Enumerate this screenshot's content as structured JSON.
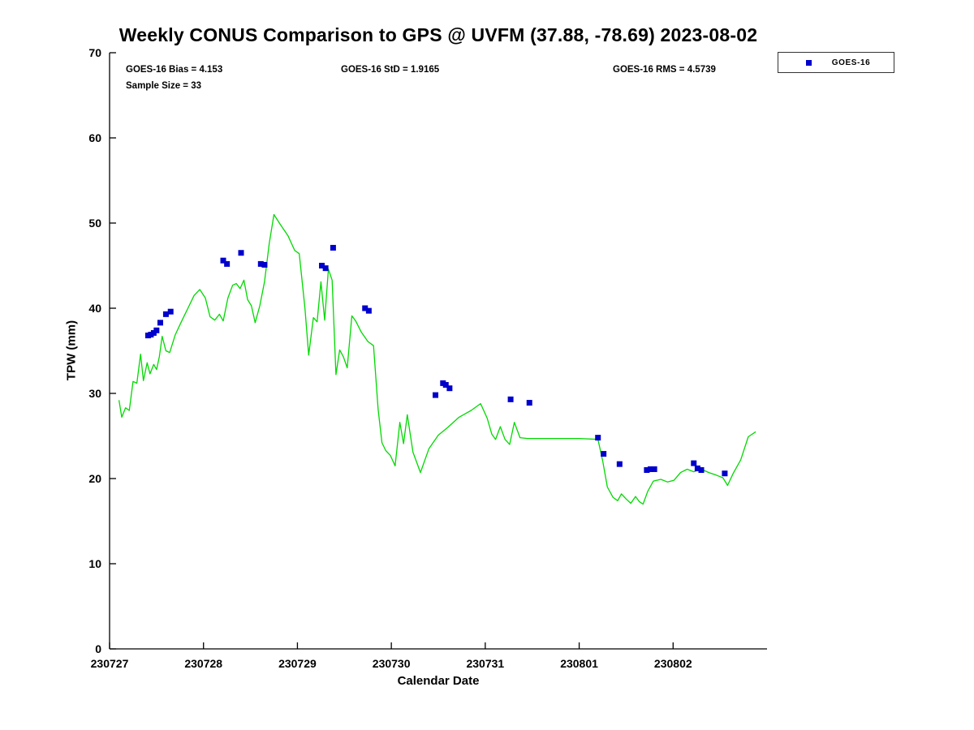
{
  "title": "Weekly CONUS Comparison to GPS @ UVFM (37.88, -78.69) 2023-08-02",
  "stats": {
    "bias": "GOES-16 Bias = 4.153",
    "std": "GOES-16 StD = 1.9165",
    "rms": "GOES-16 RMS = 4.5739",
    "sample_size": "Sample Size = 33"
  },
  "legend": {
    "label": "GOES-16",
    "marker_color": "#0000cc"
  },
  "colors": {
    "gps_line": "#00d900",
    "goes_marker": "#0000cc",
    "axis": "#000000"
  },
  "chart_data": {
    "type": "line",
    "title": "Weekly CONUS Comparison to GPS @ UVFM (37.88, -78.69) 2023-08-02",
    "xlabel": "Calendar Date",
    "ylabel": "TPW (mm)",
    "ylim": [
      0,
      70
    ],
    "xlim_days": [
      0,
      7
    ],
    "x_tick_positions": [
      0,
      1,
      2,
      3,
      4,
      5,
      6
    ],
    "x_tick_labels": [
      "230727",
      "230728",
      "230729",
      "230730",
      "230731",
      "230801",
      "230802"
    ],
    "y_ticks": [
      0,
      10,
      20,
      30,
      40,
      50,
      60,
      70
    ],
    "grid": false,
    "legend_position": "top-right-outside",
    "bias": 4.153,
    "std": 1.9165,
    "rms": 4.5739,
    "sample_size": 33,
    "series": [
      {
        "name": "GPS",
        "type": "line",
        "color": "#00d900",
        "x_days": [
          0.1,
          0.13,
          0.17,
          0.21,
          0.25,
          0.29,
          0.33,
          0.36,
          0.4,
          0.43,
          0.47,
          0.5,
          0.53,
          0.56,
          0.6,
          0.64,
          0.7,
          0.76,
          0.83,
          0.9,
          0.96,
          1.02,
          1.07,
          1.12,
          1.17,
          1.21,
          1.26,
          1.31,
          1.35,
          1.39,
          1.43,
          1.47,
          1.51,
          1.55,
          1.6,
          1.65,
          1.7,
          1.75,
          1.82,
          1.9,
          1.97,
          2.02,
          2.08,
          2.12,
          2.17,
          2.21,
          2.25,
          2.29,
          2.33,
          2.37,
          2.41,
          2.45,
          2.49,
          2.53,
          2.58,
          2.62,
          2.68,
          2.75,
          2.81,
          2.86,
          2.9,
          2.94,
          2.99,
          3.04,
          3.09,
          3.13,
          3.17,
          3.23,
          3.27,
          3.31,
          3.4,
          3.5,
          3.6,
          3.72,
          3.85,
          3.95,
          4.02,
          4.07,
          4.11,
          4.16,
          4.21,
          4.26,
          4.31,
          4.37,
          4.45,
          4.7,
          5.0,
          5.2,
          5.25,
          5.3,
          5.36,
          5.41,
          5.45,
          5.5,
          5.55,
          5.6,
          5.64,
          5.68,
          5.73,
          5.79,
          5.87,
          5.94,
          6.01,
          6.08,
          6.15,
          6.22,
          6.3,
          6.38,
          6.46,
          6.53,
          6.58,
          6.64,
          6.72,
          6.8,
          6.88
        ],
        "y": [
          29.2,
          27.2,
          28.3,
          28.0,
          31.4,
          31.2,
          34.6,
          31.5,
          33.6,
          32.3,
          33.4,
          32.8,
          34.3,
          36.7,
          35.0,
          34.8,
          36.9,
          38.3,
          39.9,
          41.5,
          42.2,
          41.2,
          39.0,
          38.6,
          39.3,
          38.5,
          41.2,
          42.7,
          42.9,
          42.3,
          43.3,
          41.0,
          40.3,
          38.3,
          40.3,
          43.1,
          47.6,
          51.0,
          49.8,
          48.5,
          46.8,
          46.4,
          40.0,
          34.5,
          38.9,
          38.4,
          43.1,
          38.6,
          44.6,
          43.3,
          32.2,
          35.1,
          34.3,
          33.0,
          39.1,
          38.5,
          37.2,
          36.1,
          35.6,
          28.1,
          24.2,
          23.3,
          22.7,
          21.5,
          26.6,
          24.1,
          27.5,
          23.1,
          21.9,
          20.7,
          23.5,
          25.1,
          26.0,
          27.2,
          28.0,
          28.8,
          27.1,
          25.2,
          24.6,
          26.1,
          24.6,
          24.0,
          26.6,
          24.8,
          24.7,
          24.7,
          24.7,
          24.6,
          22.1,
          19.0,
          17.8,
          17.4,
          18.2,
          17.6,
          17.1,
          17.9,
          17.3,
          17.0,
          18.5,
          19.7,
          19.9,
          19.6,
          19.8,
          20.7,
          21.1,
          20.8,
          21.1,
          20.7,
          20.4,
          20.1,
          19.2,
          20.6,
          22.2,
          24.9,
          25.5
        ]
      },
      {
        "name": "GOES-16",
        "type": "scatter",
        "marker": "square",
        "color": "#0000cc",
        "x_days": [
          0.41,
          0.44,
          0.47,
          0.5,
          0.54,
          0.6,
          0.65,
          1.21,
          1.25,
          1.4,
          1.61,
          1.65,
          2.26,
          2.3,
          2.38,
          2.72,
          2.76,
          3.47,
          3.55,
          3.58,
          3.62,
          4.27,
          4.47,
          5.2,
          5.26,
          5.43,
          5.72,
          5.76,
          5.8,
          6.22,
          6.26,
          6.3,
          6.55
        ],
        "y": [
          36.8,
          36.9,
          37.1,
          37.4,
          38.3,
          39.3,
          39.6,
          45.6,
          45.2,
          46.5,
          45.2,
          45.1,
          45.0,
          44.7,
          47.1,
          40.0,
          39.7,
          29.8,
          31.2,
          31.0,
          30.6,
          29.3,
          28.9,
          24.8,
          22.9,
          21.7,
          21.0,
          21.1,
          21.1,
          21.8,
          21.2,
          21.0,
          20.6
        ]
      }
    ]
  }
}
